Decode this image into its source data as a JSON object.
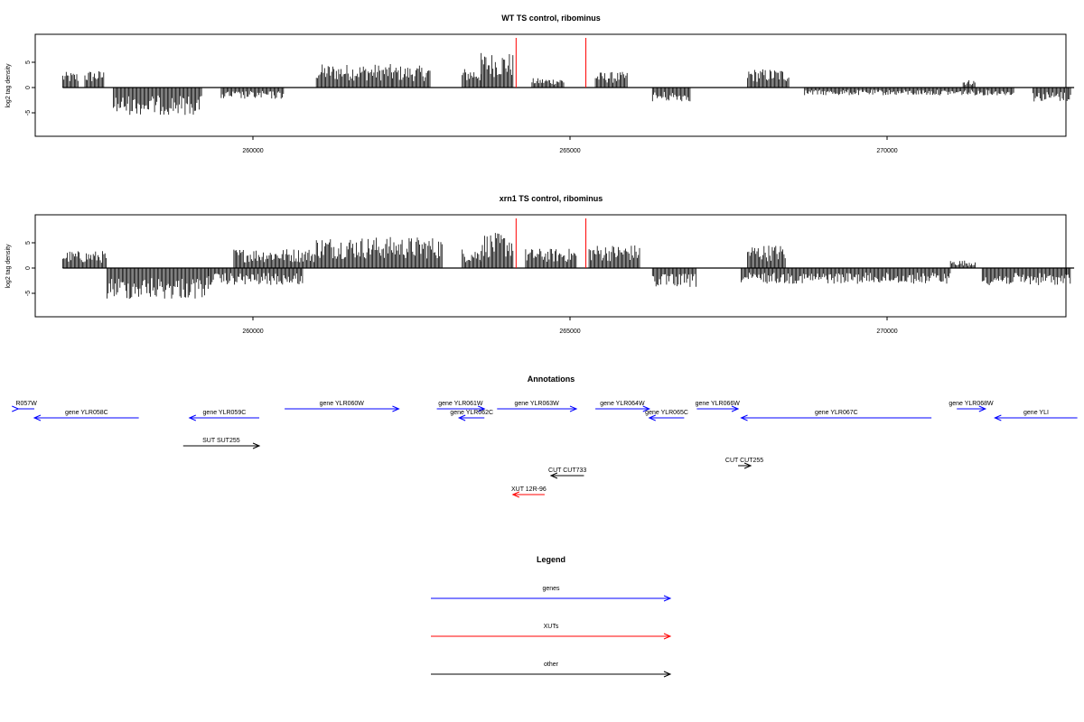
{
  "colors": {
    "genes": "#0000ff",
    "xuts": "#ff0000",
    "other": "#000000",
    "axis": "#000000",
    "marker": "#ff0000"
  },
  "chart_data": [
    {
      "type": "bar",
      "title": "WT TS control, ribominus",
      "ylabel": "log2 tag density",
      "xlim": [
        255000,
        273000
      ],
      "ylim": [
        -9,
        9
      ],
      "xticks": [
        260000,
        265000,
        270000
      ],
      "xtick_labels": [
        "260000",
        "265000",
        "270000"
      ],
      "yticks": [
        5,
        0,
        -5
      ],
      "ytick_labels": [
        "5",
        "0",
        "-5"
      ],
      "markers_x": [
        264150,
        265250
      ],
      "positive_blocks": [
        {
          "x0": 257000,
          "x1": 257250,
          "mean": 2.0
        },
        {
          "x0": 257350,
          "x1": 257650,
          "mean": 2.2
        },
        {
          "x0": 261000,
          "x1": 262200,
          "mean": 3.0
        },
        {
          "x0": 262200,
          "x1": 262800,
          "mean": 2.8
        },
        {
          "x0": 263300,
          "x1": 263600,
          "mean": 2.5
        },
        {
          "x0": 263600,
          "x1": 264100,
          "mean": 4.5
        },
        {
          "x0": 264400,
          "x1": 264900,
          "mean": 1.2
        },
        {
          "x0": 265400,
          "x1": 265900,
          "mean": 2.0
        },
        {
          "x0": 267800,
          "x1": 268450,
          "mean": 2.4
        },
        {
          "x0": 271200,
          "x1": 271400,
          "mean": 1.0
        }
      ],
      "negative_blocks": [
        {
          "x0": 257800,
          "x1": 259200,
          "mean": -3.5
        },
        {
          "x0": 259500,
          "x1": 260500,
          "mean": -1.5
        },
        {
          "x0": 266300,
          "x1": 266900,
          "mean": -1.8
        },
        {
          "x0": 268700,
          "x1": 272000,
          "mean": -1.0
        },
        {
          "x0": 272300,
          "x1": 272900,
          "mean": -1.8
        }
      ]
    },
    {
      "type": "bar",
      "title": "xrn1 TS control, ribominus",
      "ylabel": "log2 tag density",
      "xlim": [
        255000,
        273000
      ],
      "ylim": [
        -9,
        9
      ],
      "xticks": [
        260000,
        265000,
        270000
      ],
      "xtick_labels": [
        "260000",
        "265000",
        "270000"
      ],
      "yticks": [
        5,
        0,
        -5
      ],
      "ytick_labels": [
        "5",
        "0",
        "-5"
      ],
      "markers_x": [
        264150,
        265250
      ],
      "positive_blocks": [
        {
          "x0": 257000,
          "x1": 257700,
          "mean": 2.2
        },
        {
          "x0": 259700,
          "x1": 261000,
          "mean": 2.5
        },
        {
          "x0": 261000,
          "x1": 263000,
          "mean": 4.0
        },
        {
          "x0": 263300,
          "x1": 263600,
          "mean": 2.5
        },
        {
          "x0": 263600,
          "x1": 264100,
          "mean": 4.5
        },
        {
          "x0": 264300,
          "x1": 265100,
          "mean": 2.5
        },
        {
          "x0": 265300,
          "x1": 266100,
          "mean": 3.0
        },
        {
          "x0": 267800,
          "x1": 268400,
          "mean": 3.0
        },
        {
          "x0": 271000,
          "x1": 271400,
          "mean": 1.0
        }
      ],
      "negative_blocks": [
        {
          "x0": 257700,
          "x1": 259300,
          "mean": -4.0
        },
        {
          "x0": 259300,
          "x1": 260800,
          "mean": -2.2
        },
        {
          "x0": 266300,
          "x1": 267000,
          "mean": -2.5
        },
        {
          "x0": 267700,
          "x1": 271000,
          "mean": -2.0
        },
        {
          "x0": 271500,
          "x1": 272900,
          "mean": -2.2
        }
      ]
    }
  ],
  "annotations": {
    "title": "Annotations",
    "features": [
      {
        "label": "R057W",
        "type": "gene",
        "strand": "+",
        "start": 254400,
        "end": 256300,
        "row": 0
      },
      {
        "label": "gene YLR058C",
        "type": "gene",
        "strand": "-",
        "start": 256400,
        "end": 258200,
        "row": 1
      },
      {
        "label": "gene YLR059C",
        "type": "gene",
        "strand": "-",
        "start": 259000,
        "end": 260100,
        "row": 1
      },
      {
        "label": "gene YLR060W",
        "type": "gene",
        "strand": "+",
        "start": 260500,
        "end": 262300,
        "row": 0
      },
      {
        "label": "gene YLR061W",
        "type": "gene",
        "strand": "+",
        "start": 262900,
        "end": 263650,
        "row": 0
      },
      {
        "label": "gene YLR062C",
        "type": "gene",
        "strand": "-",
        "start": 263250,
        "end": 263650,
        "row": 1
      },
      {
        "label": "gene YLR063W",
        "type": "gene",
        "strand": "+",
        "start": 263850,
        "end": 265100,
        "row": 0
      },
      {
        "label": "gene YLR064W",
        "type": "gene",
        "strand": "+",
        "start": 265400,
        "end": 266250,
        "row": 0
      },
      {
        "label": "gene YLR065C",
        "type": "gene",
        "strand": "-",
        "start": 266250,
        "end": 266800,
        "row": 1
      },
      {
        "label": "gene YLR066W",
        "type": "gene",
        "strand": "+",
        "start": 267000,
        "end": 267650,
        "row": 0
      },
      {
        "label": "gene YLR067C",
        "type": "gene",
        "strand": "-",
        "start": 267700,
        "end": 270700,
        "row": 1
      },
      {
        "label": "gene YLR068W",
        "type": "gene",
        "strand": "+",
        "start": 271100,
        "end": 271550,
        "row": 0
      },
      {
        "label": "gene YLI",
        "type": "gene",
        "strand": "-",
        "start": 271700,
        "end": 273000,
        "row": 1
      },
      {
        "label": "SUT SUT255",
        "type": "other",
        "strand": "+",
        "start": 258900,
        "end": 260100,
        "row": 2
      },
      {
        "label": "CUT CUT255",
        "type": "other",
        "strand": "+",
        "start": 267650,
        "end": 267850,
        "row": 3
      },
      {
        "label": "CUT CUT733",
        "type": "other",
        "strand": "-",
        "start": 264700,
        "end": 265220,
        "row": 4
      },
      {
        "label": "XUT 12R-96",
        "type": "xut",
        "strand": "-",
        "start": 264100,
        "end": 264600,
        "row": 5
      }
    ]
  },
  "legend": {
    "title": "Legend",
    "items": [
      {
        "label": "genes",
        "type": "gene"
      },
      {
        "label": "XUTs",
        "type": "xut"
      },
      {
        "label": "other",
        "type": "other"
      }
    ]
  }
}
